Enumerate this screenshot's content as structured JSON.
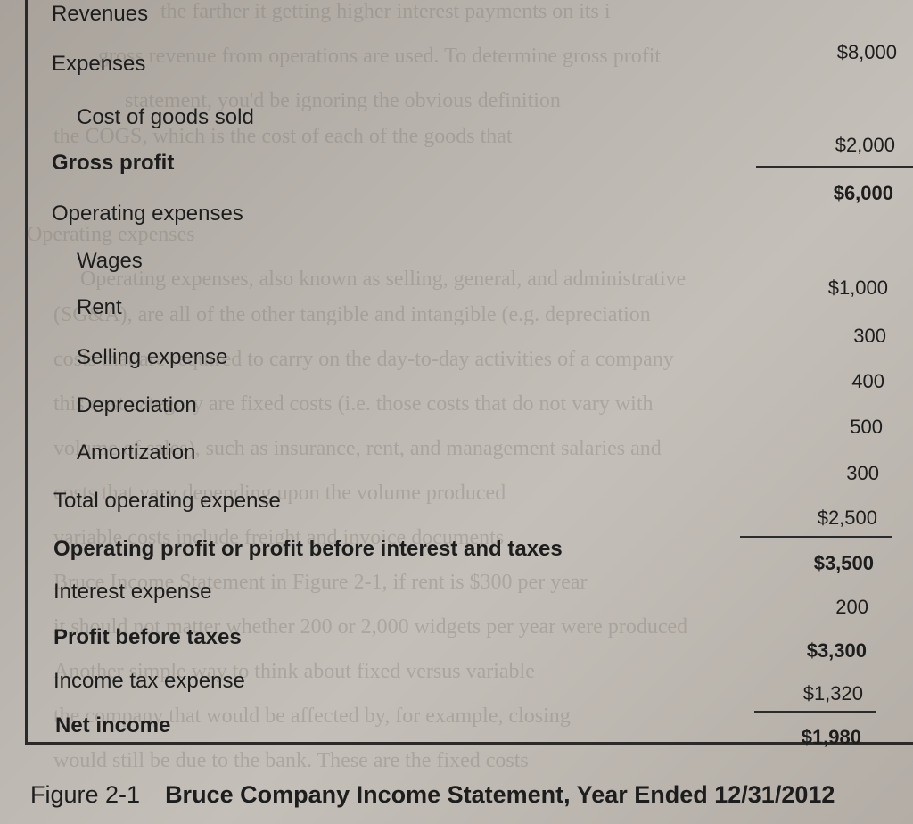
{
  "statement": {
    "rows": [
      {
        "label": "Revenues",
        "value": "$8,000"
      },
      {
        "label": "Expenses",
        "value": ""
      },
      {
        "label": "Cost of goods sold",
        "value": "$2,000"
      },
      {
        "label": "Gross profit",
        "value": "$6,000"
      },
      {
        "label": "Operating expenses",
        "value": ""
      },
      {
        "label": "Wages",
        "value": "$1,000"
      },
      {
        "label": "Rent",
        "value": "300"
      },
      {
        "label": "Selling expense",
        "value": "400"
      },
      {
        "label": "Depreciation",
        "value": "500"
      },
      {
        "label": "Amortization",
        "value": "300"
      },
      {
        "label": "Total operating expense",
        "value": "$2,500"
      },
      {
        "label": "Operating profit or profit before interest and taxes",
        "value": "$3,500"
      },
      {
        "label": "Interest expense",
        "value": "200"
      },
      {
        "label": "Profit before taxes",
        "value": "$3,300"
      },
      {
        "label": "Income tax expense",
        "value": "$1,320"
      },
      {
        "label": "Net income",
        "value": "$1,980"
      }
    ]
  },
  "caption": {
    "number": "Figure 2-1",
    "title": "Bruce Company Income Statement, Year Ended 12/31/2012"
  }
}
